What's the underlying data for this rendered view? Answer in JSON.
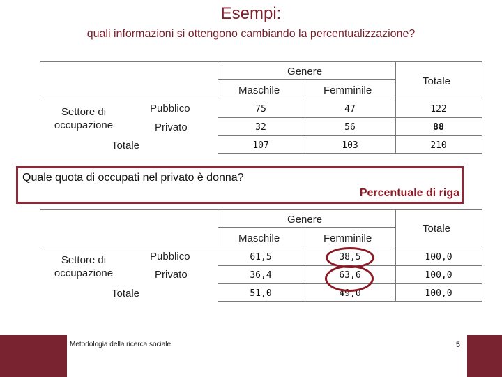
{
  "slide": {
    "title": "Esempi:",
    "subtitle": "quali informazioni si ottengono cambiando la percentualizzazione?",
    "question": "Quale quota di occupati nel privato è donna?",
    "percent_label": "Percentuale di riga",
    "footer_text": "Metodologia della ricerca sociale",
    "page_number": "5"
  },
  "table1": {
    "genere": "Genere",
    "maschile": "Maschile",
    "femminile": "Femminile",
    "totale_col": "Totale",
    "settore": "Settore di occupazione",
    "rows": [
      {
        "label": "Pubblico",
        "m": "75",
        "f": "47",
        "t": "122"
      },
      {
        "label": "Privato",
        "m": "32",
        "f": "56",
        "t": "88"
      },
      {
        "label": "Totale",
        "m": "107",
        "f": "103",
        "t": "210"
      }
    ]
  },
  "table2": {
    "genere": "Genere",
    "maschile": "Maschile",
    "femminile": "Femminile",
    "totale_col": "Totale",
    "settore": "Settore di occupazione",
    "rows": [
      {
        "label": "Pubblico",
        "m": "61,5",
        "f": "38,5",
        "t": "100,0"
      },
      {
        "label": "Privato",
        "m": "36,4",
        "f": "63,6",
        "t": "100,0"
      },
      {
        "label": "Totale",
        "m": "51,0",
        "f": "49,0",
        "t": "100,0"
      }
    ]
  },
  "colors": {
    "accent": "#7a1f2b",
    "highlight": "#8b1a24"
  }
}
